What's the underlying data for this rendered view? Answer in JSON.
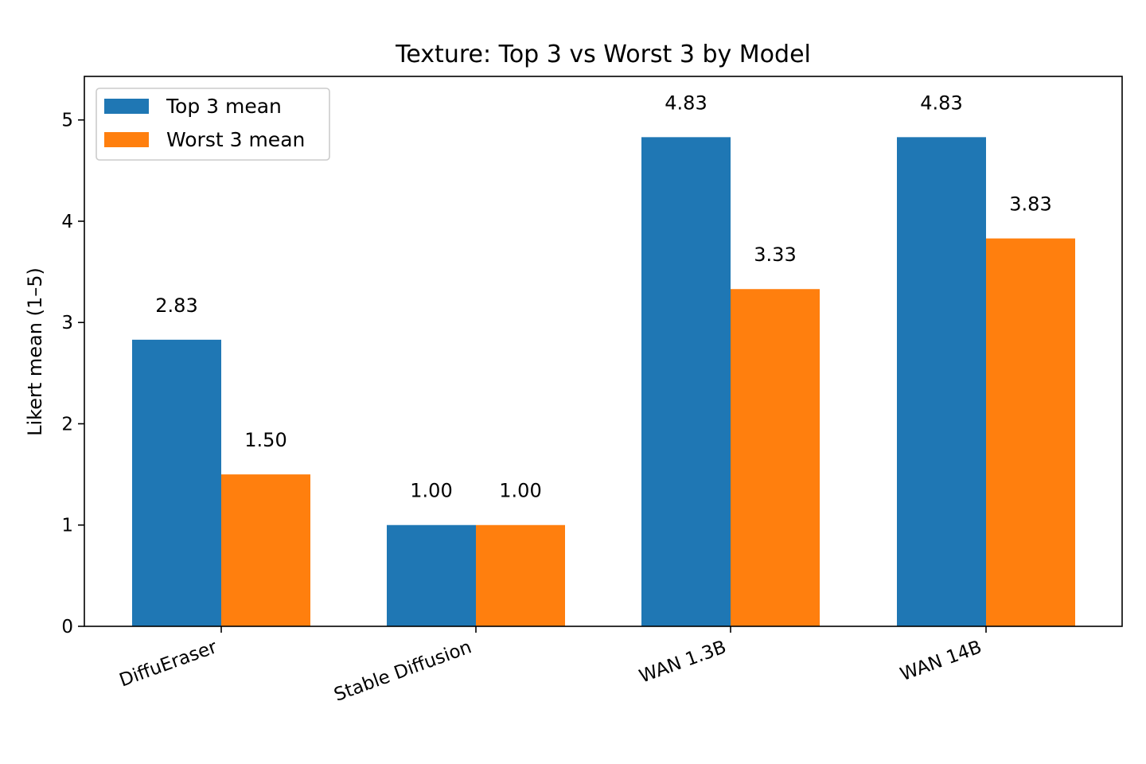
{
  "chart_data": {
    "type": "bar",
    "title": "Texture: Top 3 vs Worst 3 by Model",
    "xlabel": "",
    "ylabel": "Likert mean (1–5)",
    "categories": [
      "DiffuEraser",
      "Stable Diffusion",
      "WAN 1.3B",
      "WAN 14B"
    ],
    "series": [
      {
        "name": "Top 3 mean",
        "values": [
          2.83,
          1.0,
          4.83,
          4.83
        ],
        "labels": [
          "2.83",
          "1.00",
          "4.83",
          "4.83"
        ],
        "color": "#1f77b4"
      },
      {
        "name": "Worst 3 mean",
        "values": [
          1.5,
          1.0,
          3.33,
          3.83
        ],
        "labels": [
          "1.50",
          "1.00",
          "3.33",
          "3.83"
        ],
        "color": "#ff7f0e"
      }
    ],
    "ylim": [
      0,
      5.43
    ],
    "yticks": [
      "0",
      "1",
      "2",
      "3",
      "4",
      "5"
    ],
    "legend_position": "top-left",
    "grid": false
  }
}
